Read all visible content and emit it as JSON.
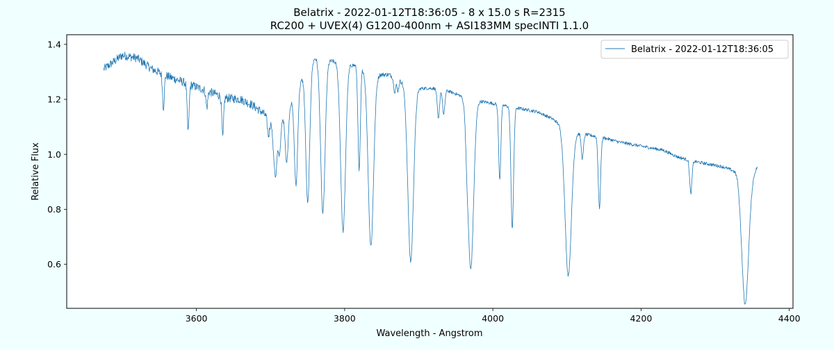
{
  "chart_data": {
    "type": "line",
    "title_line1": "Belatrix - 2022-01-12T18:36:05 - 8 x 15.0 s  R=2315",
    "title_line2": "RC200 + UVEX(4) G1200-400nm + ASI183MM   specINTI 1.1.0",
    "xlabel": "Wavelength - Angstrom",
    "ylabel": "Relative Flux",
    "xlim": [
      3425,
      4405
    ],
    "ylim": [
      0.44,
      1.435
    ],
    "xticks": [
      3600,
      3800,
      4000,
      4200,
      4400
    ],
    "yticks": [
      0.6,
      0.8,
      1.0,
      1.2,
      1.4
    ],
    "xtick_labels": [
      "3600",
      "3800",
      "4000",
      "4200",
      "4400"
    ],
    "ytick_labels": [
      "0.6",
      "0.8",
      "1.0",
      "1.2",
      "1.4"
    ],
    "grid": true,
    "legend_position": "top-right",
    "series": [
      {
        "name": "Belatrix - 2022-01-12T18:36:05",
        "color": "#1f77b4",
        "x_range": [
          3475,
          4357
        ],
        "continuum": [
          [
            3475,
            1.31
          ],
          [
            3500,
            1.36
          ],
          [
            3520,
            1.35
          ],
          [
            3540,
            1.31
          ],
          [
            3560,
            1.285
          ],
          [
            3580,
            1.265
          ],
          [
            3600,
            1.245
          ],
          [
            3620,
            1.225
          ],
          [
            3640,
            1.205
          ],
          [
            3660,
            1.2
          ],
          [
            3675,
            1.18
          ],
          [
            3690,
            1.15
          ],
          [
            3700,
            1.12
          ],
          [
            3710,
            1.1
          ],
          [
            3730,
            1.2
          ],
          [
            3745,
            1.29
          ],
          [
            3760,
            1.35
          ],
          [
            3780,
            1.34
          ],
          [
            3800,
            1.33
          ],
          [
            3820,
            1.32
          ],
          [
            3840,
            1.29
          ],
          [
            3860,
            1.29
          ],
          [
            3880,
            1.26
          ],
          [
            3900,
            1.24
          ],
          [
            3920,
            1.24
          ],
          [
            3940,
            1.23
          ],
          [
            3960,
            1.21
          ],
          [
            3980,
            1.195
          ],
          [
            4000,
            1.185
          ],
          [
            4030,
            1.17
          ],
          [
            4060,
            1.155
          ],
          [
            4080,
            1.13
          ],
          [
            4095,
            1.1
          ],
          [
            4110,
            1.08
          ],
          [
            4130,
            1.07
          ],
          [
            4150,
            1.06
          ],
          [
            4170,
            1.045
          ],
          [
            4200,
            1.03
          ],
          [
            4230,
            1.015
          ],
          [
            4250,
            0.99
          ],
          [
            4270,
            0.975
          ],
          [
            4290,
            0.965
          ],
          [
            4310,
            0.955
          ],
          [
            4330,
            0.935
          ],
          [
            4340,
            0.88
          ],
          [
            4357,
            0.955
          ]
        ],
        "absorption_lines": [
          [
            3555.5,
            0.12,
            1.2
          ],
          [
            3588.8,
            0.17,
            1.3
          ],
          [
            3614.0,
            0.06,
            1.2
          ],
          [
            3635.5,
            0.15,
            1.2
          ],
          [
            3697.2,
            0.06,
            1.4
          ],
          [
            3704.0,
            0.08,
            1.4
          ],
          [
            3707.0,
            0.18,
            1.6
          ],
          [
            3712.0,
            0.11,
            1.8
          ],
          [
            3721.9,
            0.19,
            2.0
          ],
          [
            3734.4,
            0.34,
            2.2
          ],
          [
            3750.2,
            0.49,
            2.6
          ],
          [
            3770.6,
            0.56,
            3.0
          ],
          [
            3797.9,
            0.61,
            3.3
          ],
          [
            3819.6,
            0.38,
            1.6
          ],
          [
            3835.4,
            0.63,
            3.6
          ],
          [
            3867.5,
            0.05,
            1.4
          ],
          [
            3871.8,
            0.04,
            1.3
          ],
          [
            3889.1,
            0.64,
            3.8
          ],
          [
            3926.5,
            0.11,
            1.5
          ],
          [
            3933.7,
            0.09,
            1.5
          ],
          [
            3964.7,
            0.06,
            1.4
          ],
          [
            3970.1,
            0.62,
            3.9
          ],
          [
            4009.3,
            0.27,
            1.5
          ],
          [
            4026.2,
            0.44,
            1.8
          ],
          [
            4101.7,
            0.53,
            4.3
          ],
          [
            4120.8,
            0.09,
            1.5
          ],
          [
            4143.8,
            0.26,
            1.6
          ],
          [
            4267.1,
            0.12,
            1.5
          ],
          [
            4340.5,
            0.43,
            4.6
          ]
        ]
      }
    ]
  }
}
